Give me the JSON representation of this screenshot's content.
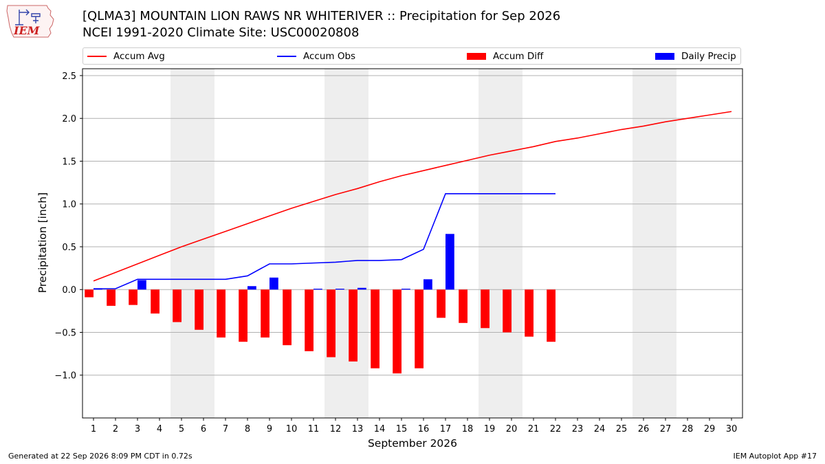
{
  "header": {
    "title_line1": "[QLMA3] MOUNTAIN LION RAWS NR WHITERIVER :: Precipitation for Sep 2026",
    "title_line2": "NCEI 1991-2020 Climate Site: USC00020808"
  },
  "logo": {
    "text": "IEM",
    "color": "#cc2222"
  },
  "legend": {
    "items": [
      {
        "label": "Accum Avg",
        "kind": "line",
        "color": "#ff0000"
      },
      {
        "label": "Accum Obs",
        "kind": "line",
        "color": "#0000ff"
      },
      {
        "label": "Accum Diff",
        "kind": "patch",
        "color": "#ff0000"
      },
      {
        "label": "Daily Precip",
        "kind": "patch",
        "color": "#0000ff"
      }
    ]
  },
  "chart_data": {
    "type": "bar",
    "xlabel": "September 2026",
    "ylabel": "Precipitation [inch]",
    "xlim": [
      0.5,
      30.5
    ],
    "ylim": [
      -1.5,
      2.58
    ],
    "yticks": [
      -1.0,
      -0.5,
      0.0,
      0.5,
      1.0,
      1.5,
      2.0,
      2.5
    ],
    "ytick_labels": [
      "−1.0",
      "−0.5",
      "0.0",
      "0.5",
      "1.0",
      "1.5",
      "2.0",
      "2.5"
    ],
    "days": [
      1,
      2,
      3,
      4,
      5,
      6,
      7,
      8,
      9,
      10,
      11,
      12,
      13,
      14,
      15,
      16,
      17,
      18,
      19,
      20,
      21,
      22,
      23,
      24,
      25,
      26,
      27,
      28,
      29,
      30
    ],
    "weekend_bands": [
      [
        4.5,
        6.5
      ],
      [
        11.5,
        13.5
      ],
      [
        18.5,
        20.5
      ],
      [
        25.5,
        27.5
      ]
    ],
    "grid": true,
    "legend_position": "top",
    "series": [
      {
        "name": "Accum Avg",
        "kind": "line",
        "color": "#ff0000",
        "x": [
          1,
          2,
          3,
          4,
          5,
          6,
          7,
          8,
          9,
          10,
          11,
          12,
          13,
          14,
          15,
          16,
          17,
          18,
          19,
          20,
          21,
          22,
          23,
          24,
          25,
          26,
          27,
          28,
          29,
          30
        ],
        "values": [
          0.1,
          0.2,
          0.3,
          0.4,
          0.5,
          0.59,
          0.68,
          0.77,
          0.86,
          0.95,
          1.03,
          1.11,
          1.18,
          1.26,
          1.33,
          1.39,
          1.45,
          1.51,
          1.57,
          1.62,
          1.67,
          1.73,
          1.77,
          1.82,
          1.87,
          1.91,
          1.96,
          2.0,
          2.04,
          2.08
        ]
      },
      {
        "name": "Accum Obs",
        "kind": "line",
        "color": "#0000ff",
        "x": [
          1,
          2,
          3,
          4,
          5,
          6,
          7,
          8,
          9,
          10,
          11,
          12,
          13,
          14,
          15,
          16,
          17,
          18,
          19,
          20,
          21,
          22
        ],
        "values": [
          0.01,
          0.01,
          0.12,
          0.12,
          0.12,
          0.12,
          0.12,
          0.16,
          0.3,
          0.3,
          0.31,
          0.32,
          0.34,
          0.34,
          0.35,
          0.47,
          1.12,
          1.12,
          1.12,
          1.12,
          1.12,
          1.12
        ]
      },
      {
        "name": "Accum Diff",
        "kind": "bar",
        "color": "#ff0000",
        "x": [
          1,
          2,
          3,
          4,
          5,
          6,
          7,
          8,
          9,
          10,
          11,
          12,
          13,
          14,
          15,
          16,
          17,
          18,
          19,
          20,
          21,
          22
        ],
        "values": [
          -0.09,
          -0.19,
          -0.18,
          -0.28,
          -0.38,
          -0.47,
          -0.56,
          -0.61,
          -0.56,
          -0.65,
          -0.72,
          -0.79,
          -0.84,
          -0.92,
          -0.98,
          -0.92,
          -0.33,
          -0.39,
          -0.45,
          -0.5,
          -0.55,
          -0.61
        ]
      },
      {
        "name": "Daily Precip",
        "kind": "bar",
        "color": "#0000ff",
        "x": [
          1,
          2,
          3,
          4,
          5,
          6,
          7,
          8,
          9,
          10,
          11,
          12,
          13,
          14,
          15,
          16,
          17,
          18,
          19,
          20,
          21,
          22
        ],
        "values": [
          0.01,
          0.0,
          0.11,
          0.0,
          0.0,
          0.0,
          0.0,
          0.04,
          0.14,
          0.0,
          0.01,
          0.01,
          0.02,
          0.0,
          0.01,
          0.12,
          0.65,
          0.0,
          0.0,
          0.0,
          0.0,
          0.0
        ]
      }
    ]
  },
  "footer": {
    "left": "Generated at 22 Sep 2026 8:09 PM CDT in 0.72s",
    "right": "IEM Autoplot App #17"
  }
}
